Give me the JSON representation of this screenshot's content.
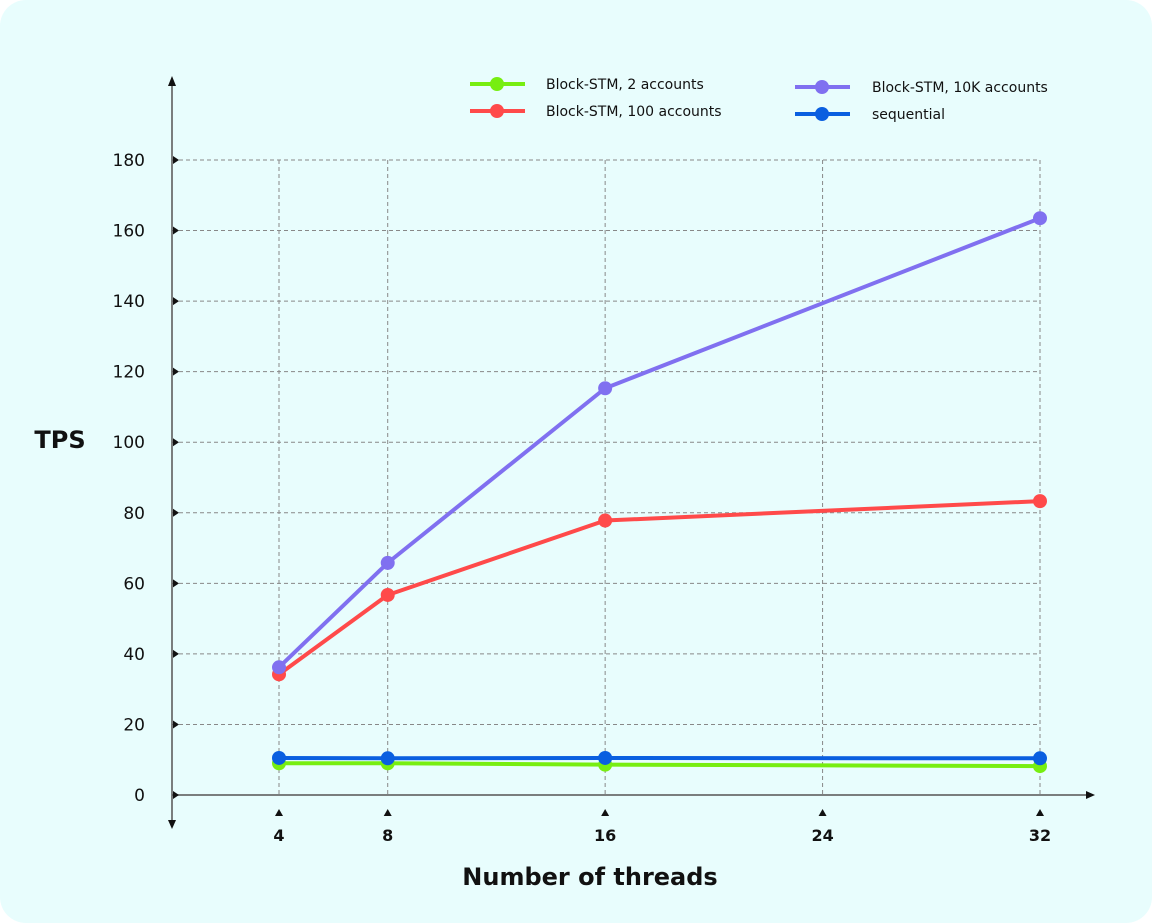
{
  "chart_data": {
    "type": "line",
    "title": "",
    "xlabel": "Number of threads",
    "ylabel": "TPS",
    "x": [
      4,
      8,
      16,
      32
    ],
    "xticks": [
      "4",
      "8",
      "16",
      "24",
      "32"
    ],
    "xtick_values": [
      4,
      8,
      16,
      24,
      32
    ],
    "yticks": [
      "0",
      "20",
      "40",
      "60",
      "80",
      "100",
      "120",
      "140",
      "160",
      "180"
    ],
    "ytick_values": [
      0,
      20,
      40,
      60,
      80,
      100,
      120,
      140,
      160,
      180
    ],
    "xlim": [
      0,
      34
    ],
    "ylim": [
      0,
      180
    ],
    "grid": true,
    "legend_position": "top",
    "series": [
      {
        "name": "Block-STM,  2 accounts",
        "color": "#77ee11",
        "values": [
          9,
          9,
          8.6,
          8.2
        ]
      },
      {
        "name": "Block-STM,  100 accounts",
        "color": "#ff4a4a",
        "values": [
          34.2,
          56.7,
          77.8,
          83.3
        ]
      },
      {
        "name": "Block-STM,  10K accounts",
        "color": "#8070f0",
        "values": [
          36.2,
          65.8,
          115.3,
          163.5
        ]
      },
      {
        "name": "sequential",
        "color": "#0a5fe0",
        "values": [
          10.5,
          10.4,
          10.5,
          10.4
        ]
      }
    ]
  }
}
